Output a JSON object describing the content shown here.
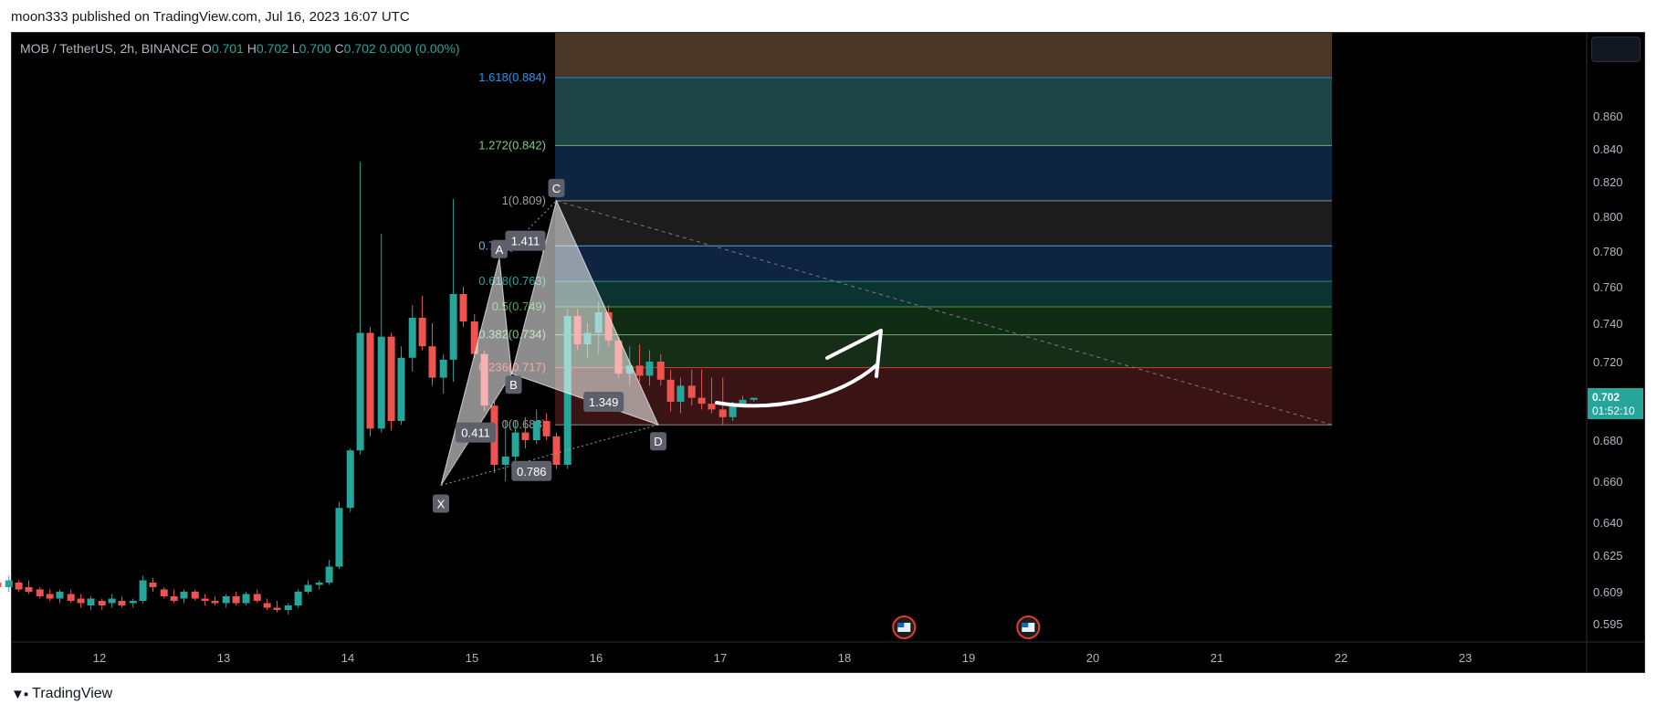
{
  "header": {
    "published_text": "moon333 published on TradingView.com, Jul 16, 2023 16:07 UTC"
  },
  "legend": {
    "symbol": "MOB / TetherUS, 2h, BINANCE",
    "o_label": "O",
    "o_value": "0.701",
    "h_label": "H",
    "h_value": "0.702",
    "l_label": "L",
    "l_value": "0.700",
    "c_label": "C",
    "c_value": "0.702",
    "change": "0.000 (0.00%)"
  },
  "price_tag": {
    "price": "0.702",
    "countdown": "01:52:10"
  },
  "footer": {
    "logo_text": "TradingView"
  },
  "colors": {
    "up": "#26a69a",
    "down": "#ef5350",
    "background": "#000000",
    "axis_text": "#b2b5be"
  },
  "chart_data": {
    "type": "candlestick",
    "y_axis_ticks": [
      "0.860",
      "0.840",
      "0.820",
      "0.800",
      "0.780",
      "0.760",
      "0.740",
      "0.720",
      "0.700",
      "0.680",
      "0.660",
      "0.640",
      "0.625",
      "0.609",
      "0.595"
    ],
    "x_axis_ticks": [
      "12",
      "13",
      "14",
      "15",
      "16",
      "17",
      "18",
      "19",
      "20",
      "21",
      "22",
      "23"
    ],
    "fib_levels": [
      {
        "label": "1.618(0.884)",
        "ratio": 1.618,
        "price": 0.884,
        "color": "#2196f3"
      },
      {
        "label": "1.272(0.842)",
        "ratio": 1.272,
        "price": 0.842,
        "color": "#81c784"
      },
      {
        "label": "1(0.809)",
        "ratio": 1,
        "price": 0.809,
        "color": "#9e9e9e"
      },
      {
        "label": "0.786(0.783)",
        "ratio": 0.786,
        "price": 0.783,
        "color": "#64b5f6"
      },
      {
        "label": "0.618(0.763)",
        "ratio": 0.618,
        "price": 0.763,
        "color": "#26a69a"
      },
      {
        "label": "0.5(0.749)",
        "ratio": 0.5,
        "price": 0.749,
        "color": "#4caf50"
      },
      {
        "label": "0.382(0.734)",
        "ratio": 0.382,
        "price": 0.734,
        "color": "#81c784"
      },
      {
        "label": "0.236(0.717)",
        "ratio": 0.236,
        "price": 0.717,
        "color": "#f44336"
      },
      {
        "label": "0(0.688)",
        "ratio": 0,
        "price": 0.688,
        "color": "#9e9e9e"
      }
    ],
    "pattern_points": [
      {
        "label": "X",
        "day": 14.75,
        "price": 0.658
      },
      {
        "label": "A",
        "day": 15.22,
        "price": 0.776
      },
      {
        "label": "B",
        "day": 15.32,
        "price": 0.714
      },
      {
        "label": "C",
        "day": 15.68,
        "price": 0.809
      },
      {
        "label": "D",
        "day": 16.5,
        "price": 0.688
      }
    ],
    "pattern_ratios": [
      {
        "label": "0.411",
        "day": 15.03,
        "price": 0.684
      },
      {
        "label": "1.411",
        "day": 15.43,
        "price": 0.786
      },
      {
        "label": "1.349",
        "day": 16.06,
        "price": 0.7
      },
      {
        "label": "0.786",
        "day": 15.48,
        "price": 0.665
      }
    ],
    "candles": [
      {
        "day": 11.02,
        "o": 0.613,
        "h": 0.615,
        "l": 0.61,
        "c": 0.611
      },
      {
        "day": 11.1,
        "o": 0.612,
        "h": 0.614,
        "l": 0.609,
        "c": 0.613
      },
      {
        "day": 11.18,
        "o": 0.613,
        "h": 0.614,
        "l": 0.61,
        "c": 0.611
      },
      {
        "day": 11.27,
        "o": 0.611,
        "h": 0.616,
        "l": 0.609,
        "c": 0.614
      },
      {
        "day": 11.35,
        "o": 0.613,
        "h": 0.614,
        "l": 0.609,
        "c": 0.61
      },
      {
        "day": 11.43,
        "o": 0.611,
        "h": 0.614,
        "l": 0.608,
        "c": 0.609
      },
      {
        "day": 11.52,
        "o": 0.61,
        "h": 0.611,
        "l": 0.606,
        "c": 0.607
      },
      {
        "day": 11.6,
        "o": 0.608,
        "h": 0.61,
        "l": 0.605,
        "c": 0.606
      },
      {
        "day": 11.68,
        "o": 0.606,
        "h": 0.61,
        "l": 0.604,
        "c": 0.609
      },
      {
        "day": 11.77,
        "o": 0.608,
        "h": 0.61,
        "l": 0.604,
        "c": 0.605
      },
      {
        "day": 11.85,
        "o": 0.606,
        "h": 0.608,
        "l": 0.602,
        "c": 0.604
      },
      {
        "day": 11.93,
        "o": 0.603,
        "h": 0.607,
        "l": 0.601,
        "c": 0.606
      },
      {
        "day": 12.02,
        "o": 0.605,
        "h": 0.606,
        "l": 0.601,
        "c": 0.603
      },
      {
        "day": 12.1,
        "o": 0.604,
        "h": 0.608,
        "l": 0.602,
        "c": 0.606
      },
      {
        "day": 12.18,
        "o": 0.605,
        "h": 0.607,
        "l": 0.602,
        "c": 0.603
      },
      {
        "day": 12.27,
        "o": 0.604,
        "h": 0.606,
        "l": 0.602,
        "c": 0.605
      },
      {
        "day": 12.35,
        "o": 0.605,
        "h": 0.616,
        "l": 0.604,
        "c": 0.614
      },
      {
        "day": 12.43,
        "o": 0.613,
        "h": 0.615,
        "l": 0.609,
        "c": 0.611
      },
      {
        "day": 12.52,
        "o": 0.61,
        "h": 0.611,
        "l": 0.606,
        "c": 0.607
      },
      {
        "day": 12.6,
        "o": 0.607,
        "h": 0.61,
        "l": 0.604,
        "c": 0.605
      },
      {
        "day": 12.68,
        "o": 0.606,
        "h": 0.61,
        "l": 0.604,
        "c": 0.609
      },
      {
        "day": 12.77,
        "o": 0.609,
        "h": 0.61,
        "l": 0.605,
        "c": 0.606
      },
      {
        "day": 12.85,
        "o": 0.606,
        "h": 0.608,
        "l": 0.603,
        "c": 0.605
      },
      {
        "day": 12.93,
        "o": 0.605,
        "h": 0.607,
        "l": 0.603,
        "c": 0.604
      },
      {
        "day": 13.02,
        "o": 0.604,
        "h": 0.608,
        "l": 0.602,
        "c": 0.607
      },
      {
        "day": 13.1,
        "o": 0.607,
        "h": 0.609,
        "l": 0.603,
        "c": 0.604
      },
      {
        "day": 13.18,
        "o": 0.604,
        "h": 0.609,
        "l": 0.603,
        "c": 0.608
      },
      {
        "day": 13.27,
        "o": 0.608,
        "h": 0.61,
        "l": 0.604,
        "c": 0.605
      },
      {
        "day": 13.35,
        "o": 0.604,
        "h": 0.606,
        "l": 0.601,
        "c": 0.602
      },
      {
        "day": 13.43,
        "o": 0.602,
        "h": 0.605,
        "l": 0.6,
        "c": 0.601
      },
      {
        "day": 13.52,
        "o": 0.601,
        "h": 0.604,
        "l": 0.599,
        "c": 0.603
      },
      {
        "day": 13.6,
        "o": 0.603,
        "h": 0.61,
        "l": 0.602,
        "c": 0.609
      },
      {
        "day": 13.68,
        "o": 0.609,
        "h": 0.614,
        "l": 0.608,
        "c": 0.612
      },
      {
        "day": 13.77,
        "o": 0.612,
        "h": 0.614,
        "l": 0.61,
        "c": 0.613
      },
      {
        "day": 13.85,
        "o": 0.613,
        "h": 0.623,
        "l": 0.612,
        "c": 0.62
      },
      {
        "day": 13.93,
        "o": 0.62,
        "h": 0.65,
        "l": 0.619,
        "c": 0.647
      },
      {
        "day": 14.02,
        "o": 0.647,
        "h": 0.676,
        "l": 0.645,
        "c": 0.675
      },
      {
        "day": 14.1,
        "o": 0.675,
        "h": 0.832,
        "l": 0.673,
        "c": 0.735
      },
      {
        "day": 14.18,
        "o": 0.735,
        "h": 0.738,
        "l": 0.682,
        "c": 0.686
      },
      {
        "day": 14.27,
        "o": 0.686,
        "h": 0.79,
        "l": 0.684,
        "c": 0.733
      },
      {
        "day": 14.35,
        "o": 0.733,
        "h": 0.735,
        "l": 0.685,
        "c": 0.69
      },
      {
        "day": 14.43,
        "o": 0.69,
        "h": 0.728,
        "l": 0.688,
        "c": 0.722
      },
      {
        "day": 14.52,
        "o": 0.722,
        "h": 0.75,
        "l": 0.715,
        "c": 0.743
      },
      {
        "day": 14.6,
        "o": 0.743,
        "h": 0.755,
        "l": 0.726,
        "c": 0.728
      },
      {
        "day": 14.68,
        "o": 0.728,
        "h": 0.74,
        "l": 0.708,
        "c": 0.712
      },
      {
        "day": 14.77,
        "o": 0.712,
        "h": 0.724,
        "l": 0.704,
        "c": 0.721
      },
      {
        "day": 14.85,
        "o": 0.721,
        "h": 0.81,
        "l": 0.71,
        "c": 0.756
      },
      {
        "day": 14.93,
        "o": 0.756,
        "h": 0.76,
        "l": 0.738,
        "c": 0.741
      },
      {
        "day": 15.02,
        "o": 0.741,
        "h": 0.745,
        "l": 0.722,
        "c": 0.724
      },
      {
        "day": 15.1,
        "o": 0.724,
        "h": 0.726,
        "l": 0.695,
        "c": 0.698
      },
      {
        "day": 15.18,
        "o": 0.698,
        "h": 0.7,
        "l": 0.664,
        "c": 0.668
      },
      {
        "day": 15.27,
        "o": 0.668,
        "h": 0.69,
        "l": 0.66,
        "c": 0.672
      },
      {
        "day": 15.35,
        "o": 0.672,
        "h": 0.69,
        "l": 0.668,
        "c": 0.684
      },
      {
        "day": 15.43,
        "o": 0.684,
        "h": 0.692,
        "l": 0.676,
        "c": 0.68
      },
      {
        "day": 15.52,
        "o": 0.68,
        "h": 0.696,
        "l": 0.678,
        "c": 0.69
      },
      {
        "day": 15.6,
        "o": 0.69,
        "h": 0.694,
        "l": 0.68,
        "c": 0.682
      },
      {
        "day": 15.68,
        "o": 0.682,
        "h": 0.684,
        "l": 0.666,
        "c": 0.668
      },
      {
        "day": 15.77,
        "o": 0.668,
        "h": 0.748,
        "l": 0.666,
        "c": 0.744
      },
      {
        "day": 15.85,
        "o": 0.744,
        "h": 0.748,
        "l": 0.726,
        "c": 0.729
      },
      {
        "day": 15.93,
        "o": 0.729,
        "h": 0.74,
        "l": 0.722,
        "c": 0.735
      },
      {
        "day": 16.02,
        "o": 0.735,
        "h": 0.752,
        "l": 0.724,
        "c": 0.746
      },
      {
        "day": 16.1,
        "o": 0.746,
        "h": 0.75,
        "l": 0.728,
        "c": 0.731
      },
      {
        "day": 16.18,
        "o": 0.731,
        "h": 0.733,
        "l": 0.712,
        "c": 0.714
      },
      {
        "day": 16.27,
        "o": 0.714,
        "h": 0.728,
        "l": 0.708,
        "c": 0.718
      },
      {
        "day": 16.35,
        "o": 0.718,
        "h": 0.729,
        "l": 0.71,
        "c": 0.713
      },
      {
        "day": 16.43,
        "o": 0.713,
        "h": 0.726,
        "l": 0.708,
        "c": 0.72
      },
      {
        "day": 16.52,
        "o": 0.72,
        "h": 0.724,
        "l": 0.708,
        "c": 0.711
      },
      {
        "day": 16.6,
        "o": 0.711,
        "h": 0.716,
        "l": 0.695,
        "c": 0.7
      },
      {
        "day": 16.68,
        "o": 0.7,
        "h": 0.712,
        "l": 0.694,
        "c": 0.708
      },
      {
        "day": 16.77,
        "o": 0.708,
        "h": 0.716,
        "l": 0.698,
        "c": 0.702
      },
      {
        "day": 16.85,
        "o": 0.702,
        "h": 0.716,
        "l": 0.696,
        "c": 0.699
      },
      {
        "day": 16.93,
        "o": 0.699,
        "h": 0.712,
        "l": 0.694,
        "c": 0.696
      },
      {
        "day": 17.02,
        "o": 0.696,
        "h": 0.712,
        "l": 0.688,
        "c": 0.692
      },
      {
        "day": 17.1,
        "o": 0.692,
        "h": 0.7,
        "l": 0.69,
        "c": 0.699
      },
      {
        "day": 17.18,
        "o": 0.699,
        "h": 0.703,
        "l": 0.697,
        "c": 0.701
      },
      {
        "day": 17.27,
        "o": 0.701,
        "h": 0.702,
        "l": 0.7,
        "c": 0.702
      }
    ],
    "event_markers": [
      {
        "day": 18.48,
        "icon": "us-flag-icon"
      },
      {
        "day": 19.48,
        "icon": "us-flag-icon"
      }
    ]
  }
}
